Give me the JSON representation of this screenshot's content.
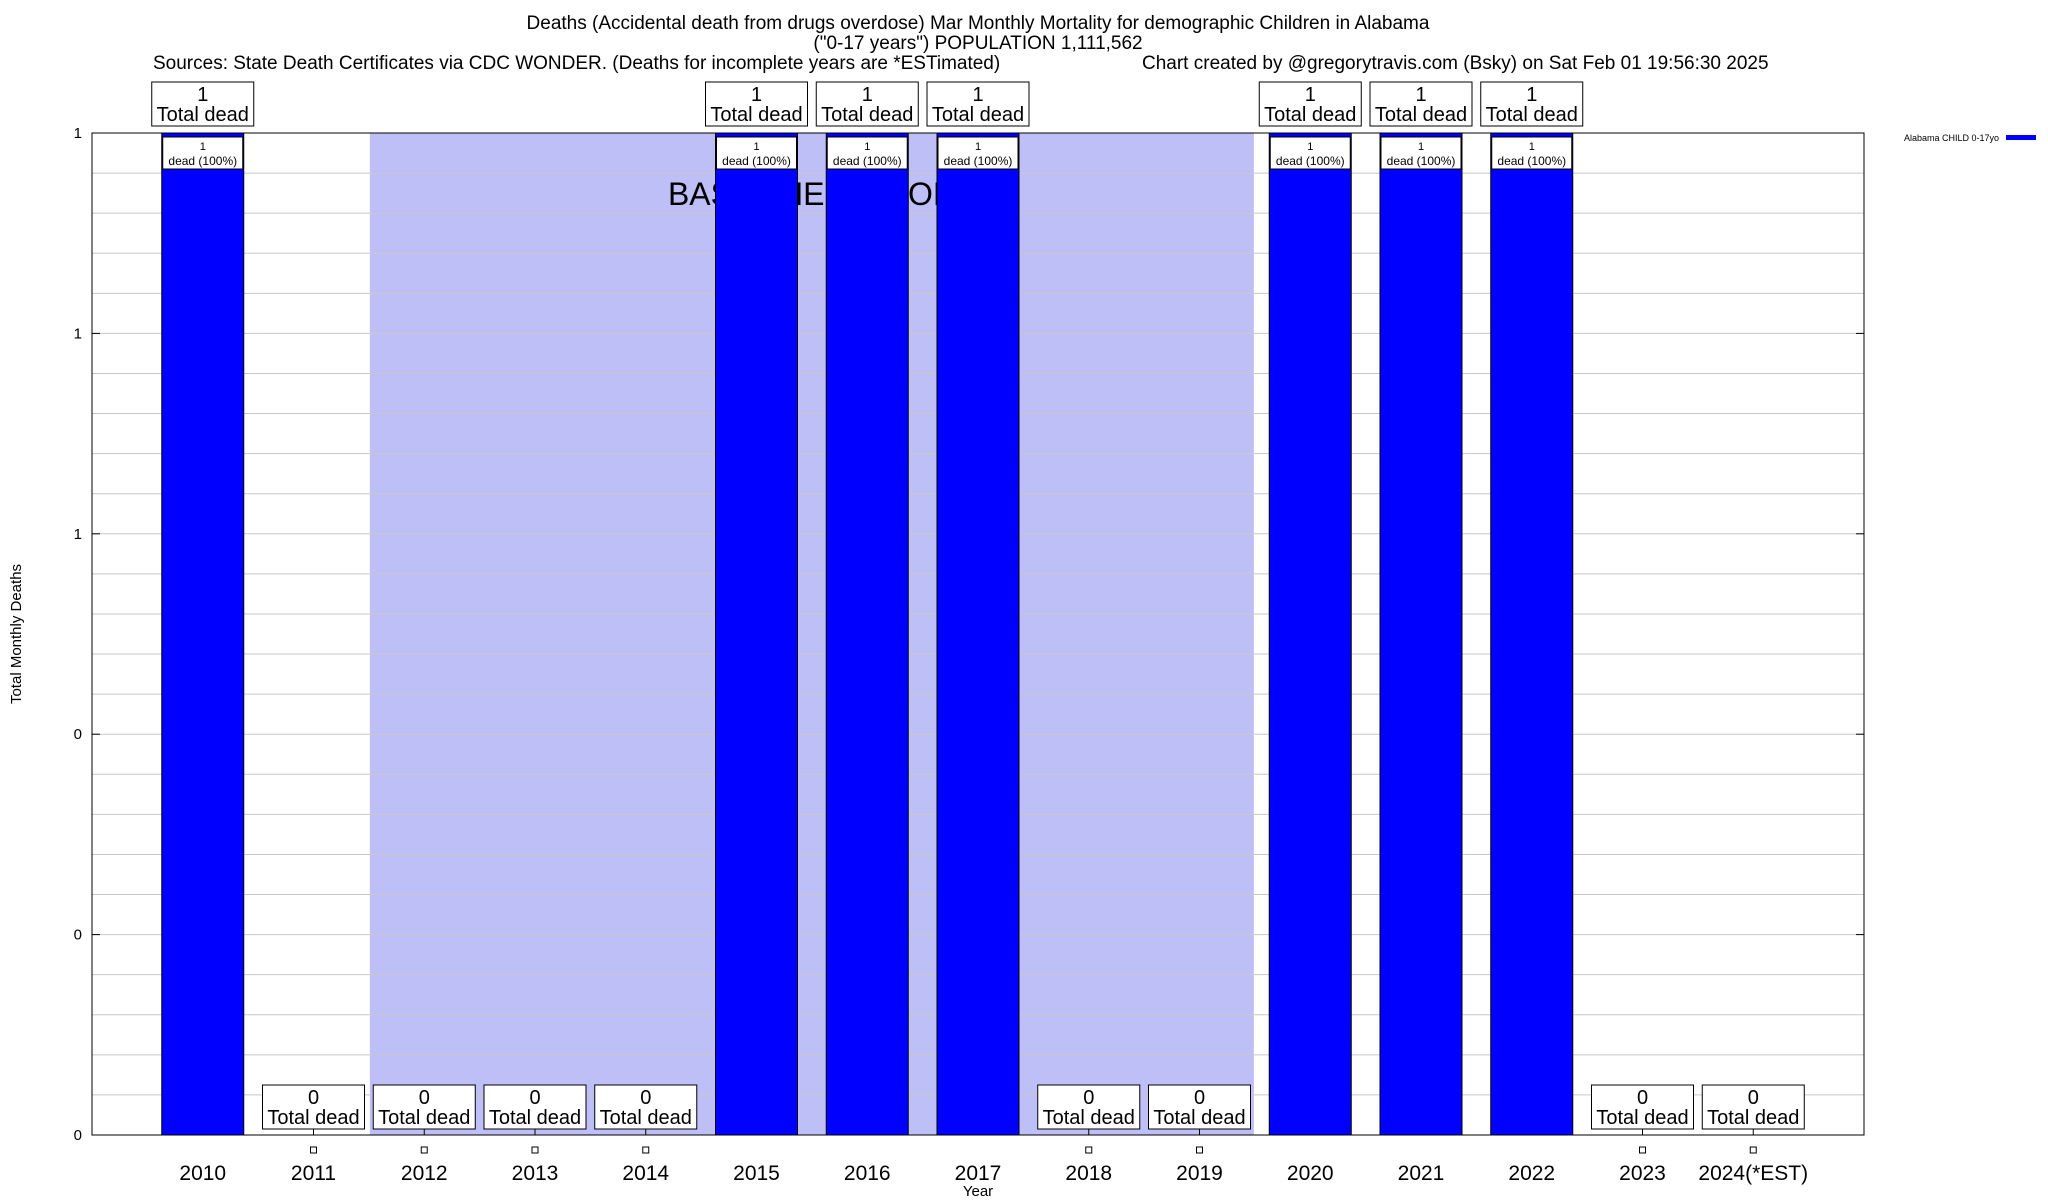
{
  "header": {
    "title": "Deaths (Accidental death from drugs overdose) Mar Monthly Mortality for demographic Children in Alabama",
    "subtitle": "(\"0-17 years\") POPULATION 1,111,562",
    "sources": "Sources: State Death Certificates via CDC WONDER. (Deaths for incomplete years are *ESTimated)",
    "credit": "Chart created by @gregorytravis.com (Bsky) on Sat Feb 01 19:56:30 2025"
  },
  "colors": {
    "bar": "#0000ff",
    "baseline": "#bfbff8",
    "grid": "#c8c8c8"
  },
  "chart_data": {
    "type": "bar",
    "xlabel": "Year",
    "ylabel": "Total Monthly Deaths",
    "ylim": [
      0,
      1
    ],
    "ytick_labels": [
      "0",
      "0",
      "0",
      "1",
      "1",
      "1"
    ],
    "grid": true,
    "legend_position": "top-right",
    "baseline_label": "BASELINE PERIOD",
    "baseline_range": [
      "2012",
      "2019"
    ],
    "categories": [
      "2010",
      "2011",
      "2012",
      "2013",
      "2014",
      "2015",
      "2016",
      "2017",
      "2018",
      "2019",
      "2020",
      "2021",
      "2022",
      "2023",
      "2024(*EST)"
    ],
    "series": [
      {
        "name": "Alabama CHILD 0-17yo",
        "values": [
          1,
          0,
          0,
          0,
          0,
          1,
          1,
          1,
          0,
          0,
          1,
          1,
          1,
          0,
          0
        ]
      }
    ],
    "total_labels": [
      "1\nTotal dead",
      "0\nTotal dead",
      "0\nTotal dead",
      "0\nTotal dead",
      "0\nTotal dead",
      "1\nTotal dead",
      "1\nTotal dead",
      "1\nTotal dead",
      "0\nTotal dead",
      "0\nTotal dead",
      "1\nTotal dead",
      "1\nTotal dead",
      "1\nTotal dead",
      "0\nTotal dead",
      "0\nTotal dead"
    ],
    "bar_labels": [
      "1\ndead (100%)",
      "",
      "",
      "",
      "",
      "1\ndead (100%)",
      "1\ndead (100%)",
      "1\ndead (100%)",
      "",
      "",
      "1\ndead (100%)",
      "1\ndead (100%)",
      "1\ndead (100%)",
      "",
      ""
    ]
  }
}
